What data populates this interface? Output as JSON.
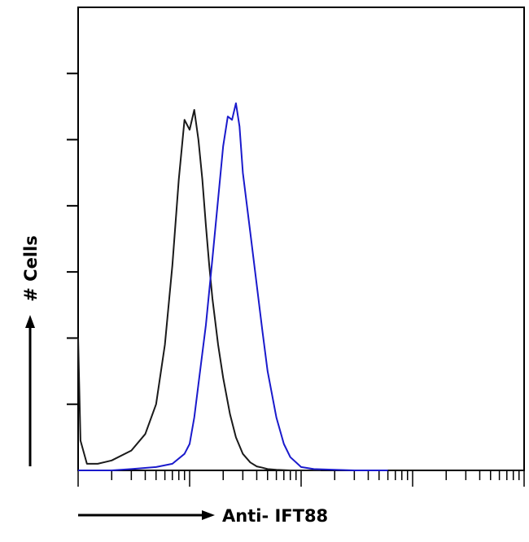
{
  "chart_data": {
    "type": "line",
    "title": "",
    "xlabel": "Anti- IFT88",
    "ylabel": "# Cells",
    "x_scale": "log",
    "xlim": [
      1,
      10000
    ],
    "ylim": [
      0,
      7
    ],
    "grid": false,
    "legend": "none",
    "series": [
      {
        "color": "#1a1a1a",
        "x": [
          1,
          1.05,
          1.2,
          1.5,
          2,
          3,
          4,
          5,
          6,
          7,
          8,
          9,
          10,
          11,
          12,
          13,
          14,
          15,
          16,
          18,
          20,
          23,
          26,
          30,
          35,
          40,
          45,
          50,
          60,
          80,
          100,
          150
        ],
        "y": [
          2.0,
          0.45,
          0.1,
          0.1,
          0.15,
          0.3,
          0.55,
          1.0,
          1.9,
          3.1,
          4.4,
          5.3,
          5.15,
          5.45,
          5.0,
          4.4,
          3.7,
          3.1,
          2.6,
          1.9,
          1.4,
          0.85,
          0.5,
          0.25,
          0.12,
          0.06,
          0.04,
          0.02,
          0.01,
          0.0,
          0.0,
          0.0
        ]
      },
      {
        "color": "#1a1acc",
        "x": [
          1,
          2,
          3,
          5,
          7,
          9,
          10,
          11,
          12,
          14,
          16,
          18,
          20,
          22,
          24,
          26,
          28,
          30,
          35,
          40,
          45,
          50,
          60,
          70,
          80,
          100,
          130,
          200,
          300,
          600
        ],
        "y": [
          0.0,
          0.0,
          0.02,
          0.05,
          0.1,
          0.25,
          0.4,
          0.8,
          1.3,
          2.2,
          3.2,
          4.1,
          4.9,
          5.35,
          5.3,
          5.55,
          5.2,
          4.5,
          3.6,
          2.8,
          2.1,
          1.5,
          0.8,
          0.4,
          0.2,
          0.05,
          0.02,
          0.01,
          0.0,
          0.0
        ]
      }
    ]
  }
}
